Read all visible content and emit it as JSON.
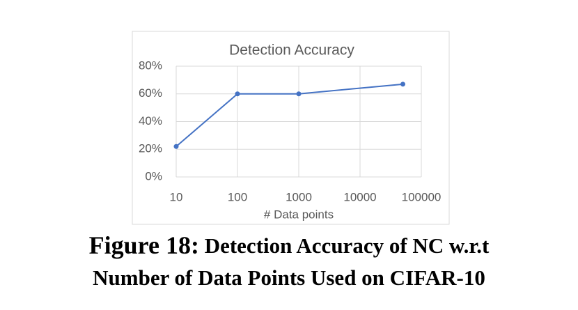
{
  "chart_data": {
    "type": "line",
    "title": "Detection Accuracy",
    "x_label": "# Data points",
    "x": [
      10,
      100,
      1000,
      50000
    ],
    "series": [
      {
        "name": "Detection Accuracy",
        "color": "#4472c4",
        "values": [
          22,
          60,
          60,
          67
        ]
      }
    ],
    "xlim": [
      10,
      100000
    ],
    "xticks": [
      10,
      100,
      1000,
      10000,
      100000
    ],
    "log_x": true,
    "ylim": [
      0,
      80
    ],
    "yticks": [
      {
        "value": 0,
        "label": "0%"
      },
      {
        "value": 20,
        "label": "20%"
      },
      {
        "value": 40,
        "label": "40%"
      },
      {
        "value": 60,
        "label": "60%"
      },
      {
        "value": 80,
        "label": "80%"
      }
    ],
    "grid": true
  },
  "caption": {
    "label": "Figure 18:",
    "line1": "Detection Accuracy of NC w.r.t",
    "line2": "Number of Data Points Used on CIFAR-10"
  }
}
